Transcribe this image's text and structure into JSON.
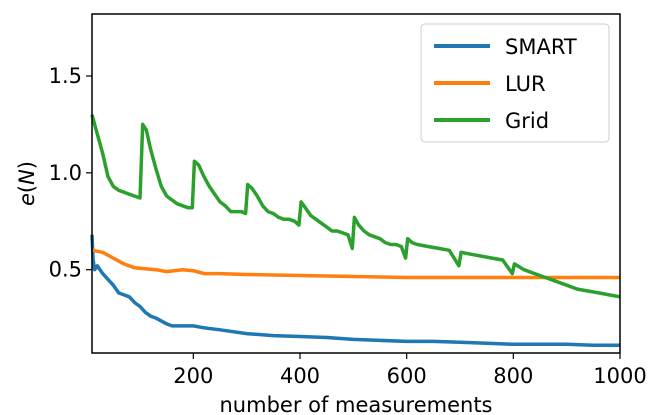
{
  "chart_data": {
    "type": "line",
    "xlabel": "number of measurements",
    "ylabel": "e(N)",
    "xlim": [
      10,
      1000
    ],
    "ylim": [
      0.07,
      1.82
    ],
    "x_ticks": [
      200,
      400,
      600,
      800,
      1000
    ],
    "y_ticks": [
      0.5,
      1.0,
      1.5
    ],
    "x_tick_labels": [
      "200",
      "400",
      "600",
      "800",
      "1000"
    ],
    "y_tick_labels": [
      "0.5",
      "1.0",
      "1.5"
    ],
    "grid": false,
    "legend_position": "top-right",
    "series": [
      {
        "name": "SMART",
        "color": "#1f77b4",
        "points": [
          [
            10,
            0.68
          ],
          [
            12,
            0.55
          ],
          [
            15,
            0.5
          ],
          [
            20,
            0.52
          ],
          [
            25,
            0.5
          ],
          [
            30,
            0.48
          ],
          [
            40,
            0.45
          ],
          [
            50,
            0.42
          ],
          [
            60,
            0.38
          ],
          [
            70,
            0.37
          ],
          [
            80,
            0.36
          ],
          [
            90,
            0.33
          ],
          [
            100,
            0.31
          ],
          [
            110,
            0.28
          ],
          [
            120,
            0.26
          ],
          [
            130,
            0.25
          ],
          [
            150,
            0.22
          ],
          [
            160,
            0.21
          ],
          [
            180,
            0.21
          ],
          [
            200,
            0.21
          ],
          [
            220,
            0.2
          ],
          [
            250,
            0.19
          ],
          [
            300,
            0.17
          ],
          [
            350,
            0.16
          ],
          [
            400,
            0.155
          ],
          [
            450,
            0.15
          ],
          [
            500,
            0.14
          ],
          [
            550,
            0.135
          ],
          [
            600,
            0.13
          ],
          [
            650,
            0.13
          ],
          [
            700,
            0.125
          ],
          [
            750,
            0.12
          ],
          [
            800,
            0.115
          ],
          [
            850,
            0.115
          ],
          [
            900,
            0.115
          ],
          [
            950,
            0.11
          ],
          [
            1000,
            0.11
          ]
        ]
      },
      {
        "name": "LUR",
        "color": "#ff7f0e",
        "points": [
          [
            10,
            0.6
          ],
          [
            30,
            0.59
          ],
          [
            50,
            0.56
          ],
          [
            70,
            0.53
          ],
          [
            90,
            0.51
          ],
          [
            110,
            0.505
          ],
          [
            130,
            0.5
          ],
          [
            150,
            0.49
          ],
          [
            180,
            0.5
          ],
          [
            200,
            0.495
          ],
          [
            220,
            0.48
          ],
          [
            250,
            0.48
          ],
          [
            300,
            0.475
          ],
          [
            400,
            0.47
          ],
          [
            500,
            0.465
          ],
          [
            600,
            0.46
          ],
          [
            700,
            0.46
          ],
          [
            800,
            0.46
          ],
          [
            900,
            0.46
          ],
          [
            1000,
            0.46
          ]
        ]
      },
      {
        "name": "Grid",
        "color": "#2ca02c",
        "points": [
          [
            10,
            1.3
          ],
          [
            20,
            1.2
          ],
          [
            30,
            1.1
          ],
          [
            40,
            0.98
          ],
          [
            50,
            0.93
          ],
          [
            60,
            0.91
          ],
          [
            70,
            0.9
          ],
          [
            80,
            0.89
          ],
          [
            90,
            0.88
          ],
          [
            100,
            0.87
          ],
          [
            105,
            1.25
          ],
          [
            112,
            1.22
          ],
          [
            120,
            1.12
          ],
          [
            130,
            1.02
          ],
          [
            140,
            0.93
          ],
          [
            150,
            0.88
          ],
          [
            160,
            0.86
          ],
          [
            170,
            0.84
          ],
          [
            180,
            0.83
          ],
          [
            190,
            0.82
          ],
          [
            198,
            0.82
          ],
          [
            202,
            1.06
          ],
          [
            210,
            1.04
          ],
          [
            220,
            0.98
          ],
          [
            230,
            0.93
          ],
          [
            240,
            0.89
          ],
          [
            250,
            0.85
          ],
          [
            260,
            0.83
          ],
          [
            270,
            0.8
          ],
          [
            280,
            0.8
          ],
          [
            290,
            0.8
          ],
          [
            298,
            0.79
          ],
          [
            302,
            0.94
          ],
          [
            310,
            0.92
          ],
          [
            320,
            0.88
          ],
          [
            330,
            0.83
          ],
          [
            340,
            0.8
          ],
          [
            350,
            0.79
          ],
          [
            360,
            0.77
          ],
          [
            370,
            0.76
          ],
          [
            380,
            0.76
          ],
          [
            390,
            0.75
          ],
          [
            398,
            0.73
          ],
          [
            402,
            0.85
          ],
          [
            410,
            0.82
          ],
          [
            420,
            0.78
          ],
          [
            430,
            0.76
          ],
          [
            440,
            0.74
          ],
          [
            450,
            0.72
          ],
          [
            460,
            0.7
          ],
          [
            470,
            0.7
          ],
          [
            480,
            0.69
          ],
          [
            490,
            0.68
          ],
          [
            498,
            0.61
          ],
          [
            502,
            0.77
          ],
          [
            510,
            0.73
          ],
          [
            520,
            0.7
          ],
          [
            530,
            0.68
          ],
          [
            540,
            0.67
          ],
          [
            550,
            0.66
          ],
          [
            560,
            0.64
          ],
          [
            570,
            0.63
          ],
          [
            580,
            0.63
          ],
          [
            590,
            0.62
          ],
          [
            598,
            0.56
          ],
          [
            602,
            0.66
          ],
          [
            610,
            0.64
          ],
          [
            620,
            0.63
          ],
          [
            640,
            0.62
          ],
          [
            660,
            0.61
          ],
          [
            680,
            0.6
          ],
          [
            698,
            0.52
          ],
          [
            702,
            0.59
          ],
          [
            720,
            0.58
          ],
          [
            740,
            0.57
          ],
          [
            760,
            0.56
          ],
          [
            780,
            0.55
          ],
          [
            798,
            0.48
          ],
          [
            802,
            0.53
          ],
          [
            820,
            0.5
          ],
          [
            840,
            0.48
          ],
          [
            860,
            0.46
          ],
          [
            880,
            0.44
          ],
          [
            900,
            0.42
          ],
          [
            920,
            0.4
          ],
          [
            940,
            0.39
          ],
          [
            960,
            0.38
          ],
          [
            980,
            0.37
          ],
          [
            1000,
            0.36
          ]
        ]
      }
    ]
  }
}
